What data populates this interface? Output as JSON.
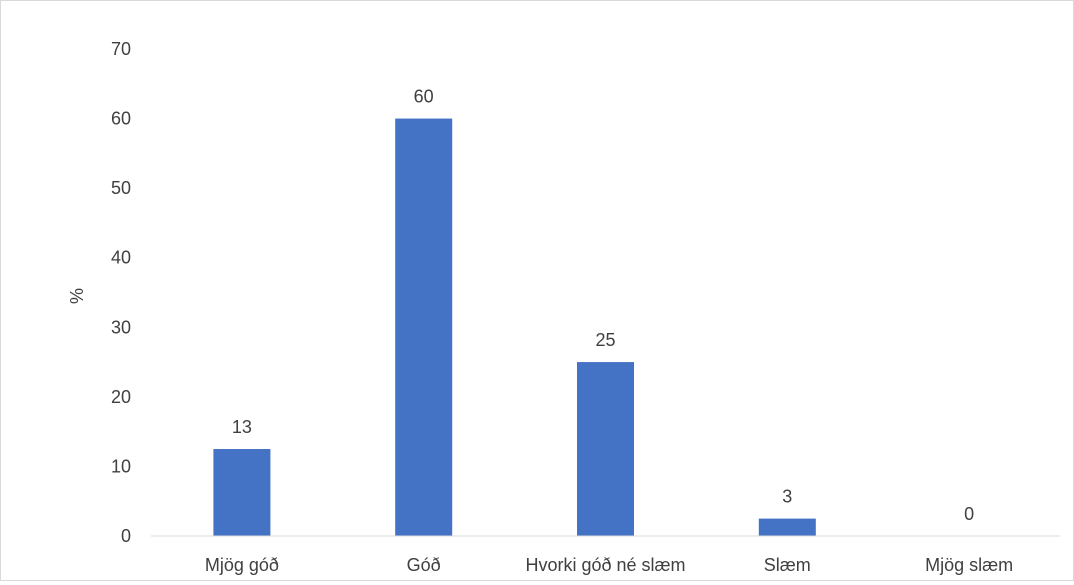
{
  "chart_data": {
    "type": "bar",
    "title": "",
    "xlabel": "",
    "ylabel": "%",
    "categories": [
      "Mjög góð",
      "Góð",
      "Hvorki góð né slæm",
      "Slæm",
      "Mjög slæm"
    ],
    "values": [
      12.5,
      60,
      25,
      2.5,
      0
    ],
    "data_labels": [
      "13",
      "60",
      "25",
      "3",
      "0"
    ],
    "ylim": [
      0,
      70
    ],
    "yticks": [
      "0",
      "10",
      "20",
      "30",
      "40",
      "50",
      "60",
      "70"
    ],
    "grid": false,
    "legend": "none",
    "bar_color": "#4472C4",
    "axis_color": "#d9d9d9"
  }
}
